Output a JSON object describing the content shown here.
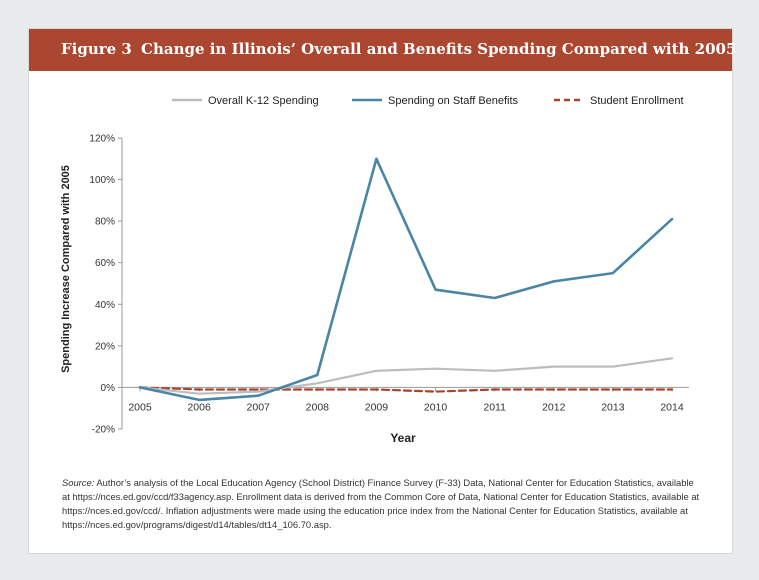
{
  "figure": {
    "label": "Figure 3",
    "title": "Change in Illinois’ Overall and Benefits Spending Compared with 2005",
    "source_label": "Source:",
    "source_text": "Author’s analysis of the Local Education Agency (School District) Finance Survey (F-33) Data, National Center for Education Statistics, available at https://nces.ed.gov/ccd/f33agency.asp. Enrollment data is derived from the Common Core of Data, National Center for Education Statistics, available at https://nces.ed.gov/ccd/. Inflation adjustments were made using the education price index from the National Center for Education Statistics, available at https://nces.ed.gov/programs/digest/d14/tables/dt14_106.70.asp."
  },
  "colors": {
    "banner": "#ab4631",
    "overall": "#4a85a6",
    "benefits": "#a8432c",
    "enrollment": "#bdbdbd",
    "axis": "#9a9a9a"
  },
  "chart_data": {
    "type": "line",
    "xlabel": "Year",
    "ylabel": "Spending Increase Compared with 2005",
    "x": [
      "2005",
      "2006",
      "2007",
      "2008",
      "2009",
      "2010",
      "2011",
      "2012",
      "2013",
      "2014"
    ],
    "ylim": [
      -20,
      120
    ],
    "yticks": [
      -20,
      0,
      20,
      40,
      60,
      80,
      100,
      120
    ],
    "ytick_labels": [
      "-20%",
      "0%",
      "20%",
      "40%",
      "60%",
      "80%",
      "100%",
      "120%"
    ],
    "grid": false,
    "legend_position": "top",
    "series": [
      {
        "name": "Overall K-12 Spending",
        "style": "solid",
        "values": [
          0,
          -3,
          -2,
          2,
          8,
          9,
          8,
          10,
          10,
          14
        ]
      },
      {
        "name": "Spending on Staff Benefits",
        "style": "solid",
        "values": [
          0,
          -6,
          -4,
          6,
          110,
          47,
          43,
          51,
          55,
          81
        ]
      },
      {
        "name": "Student Enrollment",
        "style": "dashed",
        "values": [
          0,
          -1,
          -1,
          -1,
          -1,
          -2,
          -1,
          -1,
          -1,
          -1
        ]
      }
    ]
  }
}
